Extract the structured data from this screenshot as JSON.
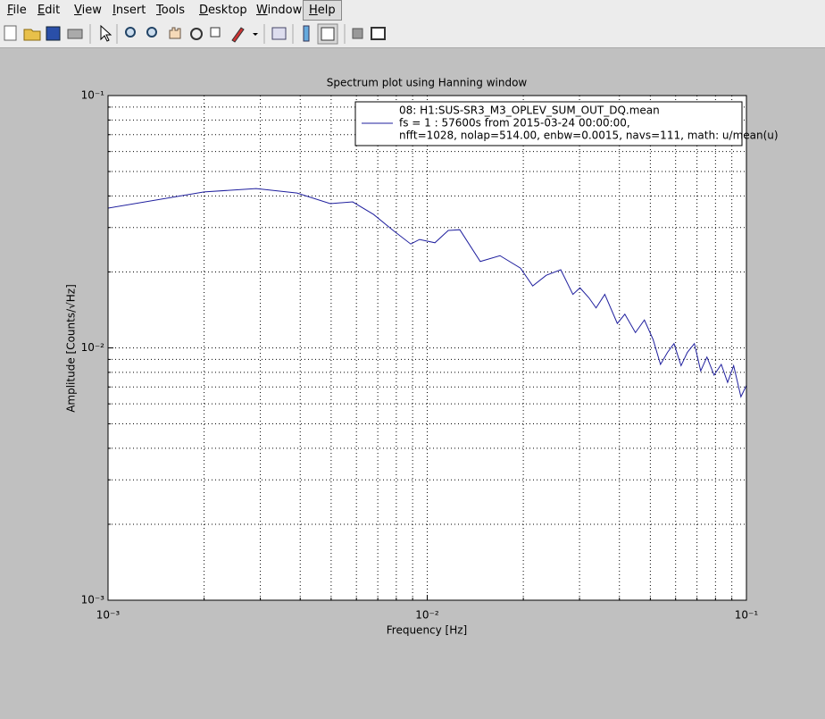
{
  "menu": [
    "File",
    "Edit",
    "View",
    "Insert",
    "Tools",
    "Desktop",
    "Window",
    "Help"
  ],
  "chart_data": {
    "type": "line",
    "title": "Spectrum plot using Hanning window",
    "x_label": "Frequency [Hz]",
    "y_label": "Amplitude [Counts/√Hz]",
    "xscale": "log",
    "yscale": "log",
    "xlim": [
      0.001,
      0.1
    ],
    "ylim": [
      0.001,
      0.1
    ],
    "xticks": [
      {
        "value": 0.001,
        "label": "10⁻³"
      },
      {
        "value": 0.01,
        "label": "10⁻²"
      },
      {
        "value": 0.1,
        "label": "10⁻¹"
      }
    ],
    "yticks": [
      {
        "value": 0.001,
        "label": "10⁻³"
      },
      {
        "value": 0.01,
        "label": "10⁻²"
      },
      {
        "value": 0.1,
        "label": "10⁻¹"
      }
    ],
    "xminorticks": [
      0.002,
      0.003,
      0.004,
      0.005,
      0.006,
      0.007,
      0.008,
      0.009,
      0.02,
      0.03,
      0.04,
      0.05,
      0.06,
      0.07,
      0.08,
      0.09
    ],
    "yminorticks": [
      0.002,
      0.003,
      0.004,
      0.005,
      0.006,
      0.007,
      0.008,
      0.009,
      0.02,
      0.03,
      0.04,
      0.05,
      0.06,
      0.07,
      0.08,
      0.09
    ],
    "grid": true,
    "legend": "top-right",
    "x": [
      0.001,
      0.002,
      0.00291,
      0.00391,
      0.00497,
      0.00584,
      0.00679,
      0.00782,
      0.00888,
      0.00946,
      0.01057,
      0.01164,
      0.01265,
      0.01466,
      0.0169,
      0.0196,
      0.0214,
      0.0236,
      0.0262,
      0.0286,
      0.0301,
      0.0321,
      0.0338,
      0.036,
      0.0394,
      0.0416,
      0.0449,
      0.0479,
      0.051,
      0.0538,
      0.0566,
      0.0593,
      0.0624,
      0.0653,
      0.0687,
      0.0719,
      0.0752,
      0.0792,
      0.0834,
      0.0873,
      0.0912,
      0.0961,
      0.1
    ],
    "series": [
      {
        "name": [
          "08: H1:SUS-SR3_M3_OPLEV_SUM_OUT_DQ.mean",
          "fs = 1 : 57600s from 2015-03-24 00:00:00,",
          "nfft=1028, nolap=514.00, enbw=0.0015, navs=111, math: u/mean(u)"
        ],
        "color": "#1f1f9e",
        "values": [
          0.0358,
          0.0415,
          0.0428,
          0.0411,
          0.0373,
          0.0379,
          0.0338,
          0.0292,
          0.0258,
          0.0269,
          0.0261,
          0.0292,
          0.0294,
          0.022,
          0.0232,
          0.0207,
          0.0176,
          0.0194,
          0.0204,
          0.0163,
          0.0173,
          0.0158,
          0.0144,
          0.0163,
          0.0125,
          0.0136,
          0.0115,
          0.0129,
          0.0108,
          0.0086,
          0.0096,
          0.0104,
          0.0085,
          0.0096,
          0.0104,
          0.0081,
          0.0092,
          0.0078,
          0.0086,
          0.0073,
          0.0085,
          0.0064,
          0.0071
        ]
      }
    ]
  }
}
